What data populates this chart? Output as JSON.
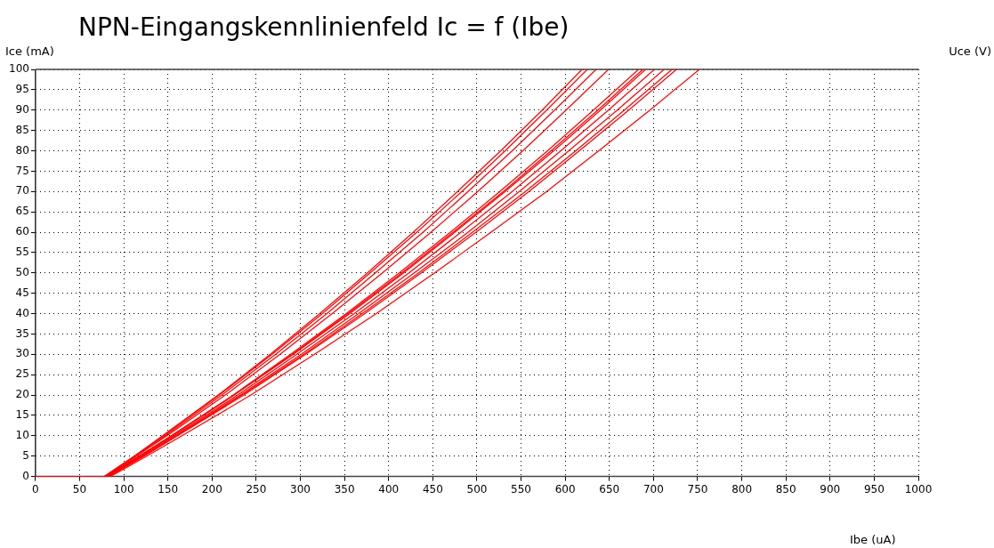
{
  "chart_data": {
    "type": "line",
    "title": "NPN-Eingangskennlinienfeld Ic = f (Ibe)",
    "xlabel": "Ibe (uA)",
    "ylabel": "Ice (mA)",
    "legend_title": "Uce (V)",
    "xlim": [
      0,
      1000
    ],
    "xticks": [
      0,
      50,
      100,
      150,
      200,
      250,
      300,
      350,
      400,
      450,
      500,
      550,
      600,
      650,
      700,
      750,
      800,
      850,
      900,
      950,
      1000
    ],
    "ylim": [
      0,
      100
    ],
    "yticks": [
      0,
      5,
      10,
      15,
      20,
      25,
      30,
      35,
      40,
      45,
      50,
      55,
      60,
      65,
      70,
      75,
      80,
      85,
      90,
      95,
      100
    ],
    "grid": true,
    "series": [
      {
        "color": "#ff0000",
        "x": [
          0,
          78,
          112,
          144,
          207,
          266,
          322,
          376,
          428,
          478,
          527,
          574,
          619
        ],
        "values": [
          0,
          0,
          5,
          10,
          20,
          30,
          40,
          50,
          60,
          70,
          80,
          90,
          100
        ]
      },
      {
        "color": "#ff0000",
        "x": [
          0,
          78,
          112,
          145,
          208,
          268,
          325,
          379,
          432,
          483,
          532,
          579,
          625
        ],
        "values": [
          0,
          0,
          5,
          10,
          20,
          30,
          40,
          50,
          60,
          70,
          80,
          90,
          100
        ]
      },
      {
        "color": "#ff0000",
        "x": [
          0,
          79,
          114,
          147,
          211,
          272,
          330,
          385,
          439,
          490,
          540,
          588,
          635
        ],
        "values": [
          0,
          0,
          5,
          10,
          20,
          30,
          40,
          50,
          60,
          70,
          80,
          90,
          100
        ]
      },
      {
        "color": "#ff0000",
        "x": [
          0,
          79,
          114,
          149,
          215,
          277,
          336,
          393,
          448,
          501,
          552,
          601,
          649
        ],
        "values": [
          0,
          0,
          5,
          10,
          20,
          30,
          40,
          50,
          60,
          70,
          80,
          90,
          100
        ]
      },
      {
        "color": "#ff0000",
        "x": [
          0,
          80,
          117,
          154,
          224,
          289,
          352,
          412,
          470,
          526,
          580,
          632,
          683
        ],
        "values": [
          0,
          0,
          5,
          10,
          20,
          30,
          40,
          50,
          60,
          70,
          80,
          90,
          100
        ]
      },
      {
        "color": "#ff0000",
        "x": [
          0,
          80,
          118,
          154,
          225,
          291,
          354,
          415,
          473,
          530,
          584,
          637,
          688
        ],
        "values": [
          0,
          0,
          5,
          10,
          20,
          30,
          40,
          50,
          60,
          70,
          80,
          90,
          100
        ]
      },
      {
        "color": "#ff0000",
        "x": [
          0,
          80,
          118,
          155,
          225,
          292,
          356,
          417,
          475,
          532,
          587,
          640,
          691
        ],
        "values": [
          0,
          0,
          5,
          10,
          20,
          30,
          40,
          50,
          60,
          70,
          80,
          90,
          100
        ]
      },
      {
        "color": "#ff0000",
        "x": [
          0,
          81,
          119,
          157,
          229,
          296,
          361,
          423,
          482,
          540,
          595,
          649,
          701
        ],
        "values": [
          0,
          0,
          5,
          10,
          20,
          30,
          40,
          50,
          60,
          70,
          80,
          90,
          100
        ]
      },
      {
        "color": "#ff0000",
        "x": [
          0,
          82,
          121,
          159,
          232,
          301,
          366,
          429,
          490,
          548,
          604,
          659,
          712
        ],
        "values": [
          0,
          0,
          5,
          10,
          20,
          30,
          40,
          50,
          60,
          70,
          80,
          90,
          100
        ]
      },
      {
        "color": "#ff0000",
        "x": [
          0,
          82,
          122,
          160,
          234,
          304,
          370,
          434,
          495,
          555,
          612,
          667,
          721
        ],
        "values": [
          0,
          0,
          5,
          10,
          20,
          30,
          40,
          50,
          60,
          70,
          80,
          90,
          100
        ]
      },
      {
        "color": "#ff0000",
        "x": [
          0,
          83,
          123,
          161,
          236,
          306,
          373,
          437,
          499,
          559,
          616,
          672,
          726
        ],
        "values": [
          0,
          0,
          5,
          10,
          20,
          30,
          40,
          50,
          60,
          70,
          80,
          90,
          100
        ]
      },
      {
        "color": "#ff0000",
        "x": [
          0,
          85,
          126,
          166,
          244,
          316,
          386,
          452,
          516,
          579,
          638,
          696,
          752
        ],
        "values": [
          0,
          0,
          5,
          10,
          20,
          30,
          40,
          50,
          60,
          70,
          80,
          90,
          100
        ]
      }
    ]
  }
}
